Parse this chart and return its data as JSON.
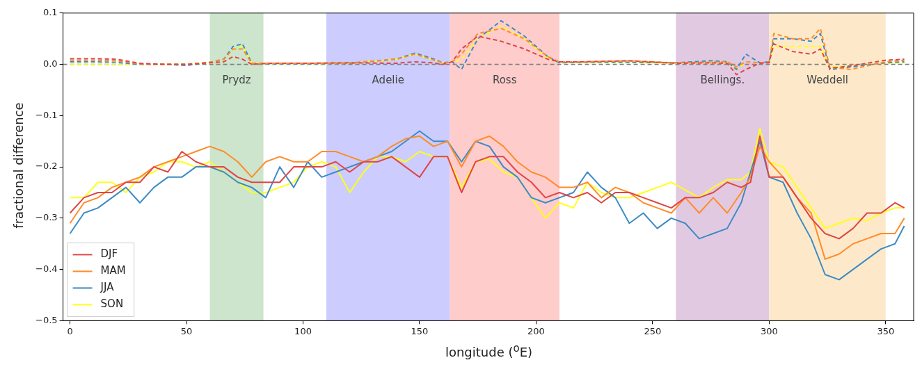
{
  "chart_data": {
    "type": "line",
    "xlabel": "longitude ($^{o}$E)",
    "ylabel": "fractional difference",
    "xlim": [
      -3,
      362
    ],
    "ylim": [
      -0.5,
      0.1
    ],
    "xticks": [
      0,
      50,
      100,
      150,
      200,
      250,
      300,
      350
    ],
    "yticks": [
      {
        "value": -0.5,
        "label": "−0.5"
      },
      {
        "value": -0.4,
        "label": "−0.4"
      },
      {
        "value": -0.3,
        "label": "−0.3"
      },
      {
        "value": -0.2,
        "label": "−0.2"
      },
      {
        "value": -0.1,
        "label": "−0.1"
      },
      {
        "value": 0,
        "label": "0.0"
      },
      {
        "value": 0.1,
        "label": "0.1"
      }
    ],
    "grid": false,
    "legend": "bottom left",
    "marker": "none",
    "line_style": "solid",
    "x": [
      0,
      6,
      12,
      18,
      24,
      30,
      36,
      42,
      48,
      54,
      60,
      66,
      72,
      78,
      84,
      90,
      96,
      102,
      108,
      114,
      120,
      126,
      132,
      138,
      144,
      150,
      156,
      162,
      168,
      174,
      180,
      186,
      192,
      198,
      204,
      210,
      216,
      222,
      228,
      234,
      240,
      246,
      252,
      258,
      264,
      270,
      276,
      282,
      288,
      292,
      296,
      300,
      306,
      312,
      318,
      324,
      330,
      336,
      342,
      348,
      354,
      358
    ],
    "series": [
      {
        "name": "DJF",
        "color": "#e04545",
        "values": [
          -0.29,
          -0.26,
          -0.25,
          -0.25,
          -0.23,
          -0.23,
          -0.2,
          -0.21,
          -0.17,
          -0.19,
          -0.2,
          -0.2,
          -0.22,
          -0.23,
          -0.23,
          -0.23,
          -0.2,
          -0.2,
          -0.2,
          -0.19,
          -0.21,
          -0.19,
          -0.19,
          -0.18,
          -0.2,
          -0.22,
          -0.18,
          -0.18,
          -0.25,
          -0.19,
          -0.18,
          -0.18,
          -0.21,
          -0.23,
          -0.26,
          -0.25,
          -0.26,
          -0.25,
          -0.27,
          -0.25,
          -0.25,
          -0.26,
          -0.27,
          -0.28,
          -0.26,
          -0.26,
          -0.25,
          -0.23,
          -0.24,
          -0.23,
          -0.14,
          -0.22,
          -0.22,
          -0.26,
          -0.3,
          -0.33,
          -0.34,
          -0.32,
          -0.29,
          -0.29,
          -0.27,
          -0.28
        ]
      },
      {
        "name": "MAM",
        "color": "#ff8c2a",
        "values": [
          -0.31,
          -0.27,
          -0.26,
          -0.24,
          -0.23,
          -0.22,
          -0.2,
          -0.19,
          -0.18,
          -0.17,
          -0.16,
          -0.17,
          -0.19,
          -0.22,
          -0.19,
          -0.18,
          -0.19,
          -0.19,
          -0.17,
          -0.17,
          -0.18,
          -0.19,
          -0.18,
          -0.16,
          -0.145,
          -0.14,
          -0.16,
          -0.15,
          -0.2,
          -0.15,
          -0.14,
          -0.16,
          -0.19,
          -0.21,
          -0.22,
          -0.24,
          -0.24,
          -0.23,
          -0.26,
          -0.24,
          -0.25,
          -0.27,
          -0.28,
          -0.29,
          -0.26,
          -0.29,
          -0.26,
          -0.29,
          -0.25,
          -0.22,
          -0.16,
          -0.19,
          -0.22,
          -0.26,
          -0.29,
          -0.38,
          -0.37,
          -0.35,
          -0.34,
          -0.33,
          -0.33,
          -0.3
        ]
      },
      {
        "name": "JJA",
        "color": "#3d8bc4",
        "values": [
          -0.33,
          -0.29,
          -0.28,
          -0.26,
          -0.24,
          -0.27,
          -0.24,
          -0.22,
          -0.22,
          -0.2,
          -0.2,
          -0.21,
          -0.23,
          -0.24,
          -0.26,
          -0.2,
          -0.24,
          -0.19,
          -0.22,
          -0.21,
          -0.2,
          -0.19,
          -0.18,
          -0.17,
          -0.15,
          -0.13,
          -0.15,
          -0.15,
          -0.19,
          -0.15,
          -0.16,
          -0.2,
          -0.22,
          -0.26,
          -0.27,
          -0.26,
          -0.25,
          -0.21,
          -0.24,
          -0.26,
          -0.31,
          -0.29,
          -0.32,
          -0.3,
          -0.31,
          -0.34,
          -0.33,
          -0.32,
          -0.27,
          -0.21,
          -0.15,
          -0.22,
          -0.23,
          -0.29,
          -0.34,
          -0.41,
          -0.42,
          -0.4,
          -0.38,
          -0.36,
          -0.35,
          -0.315
        ]
      },
      {
        "name": "SON",
        "color": "#ffff1a",
        "values": [
          -0.26,
          -0.26,
          -0.23,
          -0.23,
          -0.25,
          -0.22,
          -0.21,
          -0.19,
          -0.19,
          -0.2,
          -0.19,
          -0.21,
          -0.23,
          -0.25,
          -0.25,
          -0.24,
          -0.23,
          -0.2,
          -0.19,
          -0.2,
          -0.25,
          -0.21,
          -0.18,
          -0.18,
          -0.19,
          -0.17,
          -0.18,
          -0.18,
          -0.24,
          -0.19,
          -0.185,
          -0.21,
          -0.22,
          -0.26,
          -0.3,
          -0.27,
          -0.28,
          -0.23,
          -0.25,
          -0.26,
          -0.26,
          -0.25,
          -0.24,
          -0.23,
          -0.245,
          -0.26,
          -0.24,
          -0.225,
          -0.225,
          -0.21,
          -0.125,
          -0.19,
          -0.2,
          -0.24,
          -0.28,
          -0.32,
          -0.31,
          -0.3,
          -0.305,
          -0.29,
          -0.28,
          -0.28
        ]
      },
      {
        "color": "#e04545",
        "line_style": "dashed",
        "x": [
          0,
          10,
          20,
          30,
          40,
          50,
          60,
          66,
          70,
          74,
          78,
          85,
          100,
          120,
          140,
          148,
          155,
          160,
          164,
          168,
          175,
          185,
          195,
          205,
          210,
          220,
          240,
          260,
          275,
          282,
          286,
          290,
          296,
          300,
          302,
          310,
          318,
          322,
          326,
          335,
          350,
          358
        ],
        "values": [
          0.011,
          0.011,
          0.01,
          0.002,
          0,
          0,
          0.003,
          0.005,
          0.015,
          0.01,
          0,
          0.002,
          0.002,
          0.003,
          0.002,
          0.005,
          0.003,
          0,
          0.005,
          0.03,
          0.055,
          0.045,
          0.03,
          0.01,
          0.005,
          0.005,
          0.007,
          0.002,
          0.003,
          0.002,
          -0.02,
          -0.01,
          0.002,
          0.003,
          0.04,
          0.025,
          0.02,
          0.03,
          -0.008,
          -0.003,
          0.008,
          0.01
        ]
      },
      {
        "color": "#ff8c2a",
        "line_style": "dashed",
        "x": [
          0,
          10,
          20,
          30,
          40,
          50,
          60,
          66,
          70,
          74,
          78,
          85,
          100,
          120,
          140,
          148,
          155,
          160,
          164,
          168,
          175,
          185,
          195,
          205,
          210,
          220,
          240,
          260,
          275,
          282,
          286,
          290,
          296,
          300,
          302,
          310,
          318,
          322,
          326,
          335,
          350,
          358
        ],
        "values": [
          0.008,
          0.008,
          0.007,
          0.001,
          0,
          0,
          0.004,
          0.01,
          0.03,
          0.03,
          0.002,
          0.002,
          0.002,
          0.003,
          0.01,
          0.02,
          0.01,
          0.003,
          0.005,
          0.02,
          0.06,
          0.07,
          0.05,
          0.015,
          0.005,
          0.005,
          0.007,
          0.003,
          0.004,
          0.005,
          -0.005,
          0.005,
          0.003,
          0.005,
          0.06,
          0.05,
          0.05,
          0.07,
          -0.005,
          -0.01,
          0.005,
          0.008
        ]
      },
      {
        "color": "#3d8bc4",
        "line_style": "dashed",
        "x": [
          0,
          10,
          20,
          30,
          40,
          50,
          60,
          66,
          70,
          74,
          78,
          85,
          100,
          120,
          140,
          148,
          155,
          160,
          164,
          168,
          175,
          185,
          195,
          205,
          210,
          220,
          240,
          260,
          275,
          282,
          286,
          290,
          296,
          300,
          302,
          310,
          318,
          322,
          326,
          335,
          350,
          358
        ],
        "values": [
          0.005,
          0.005,
          0.004,
          0,
          0,
          -0.002,
          0.004,
          0.01,
          0.035,
          0.04,
          0.002,
          0.001,
          0.001,
          0.002,
          0.01,
          0.022,
          0.012,
          0.003,
          0.005,
          -0.01,
          0.05,
          0.085,
          0.055,
          0.015,
          0.003,
          0.004,
          0.004,
          0.003,
          0.007,
          0.005,
          -0.01,
          0.02,
          0.003,
          0.005,
          0.05,
          0.05,
          0.045,
          0.06,
          -0.01,
          -0.005,
          0.003,
          0.005
        ]
      },
      {
        "color": "#ffff1a",
        "line_style": "dashed",
        "x": [
          0,
          10,
          20,
          30,
          40,
          50,
          60,
          66,
          70,
          74,
          78,
          85,
          100,
          120,
          140,
          148,
          155,
          160,
          164,
          168,
          175,
          185,
          195,
          205,
          210,
          220,
          240,
          260,
          275,
          282,
          286,
          290,
          296,
          300,
          302,
          310,
          318,
          322,
          326,
          335,
          350,
          358
        ],
        "values": [
          0,
          0,
          0,
          0,
          0,
          0,
          0.004,
          0.01,
          0.03,
          0.035,
          0.002,
          0.001,
          0.001,
          0.002,
          0.01,
          0.02,
          0.01,
          0.003,
          0.005,
          0.01,
          0.05,
          0.075,
          0.05,
          0.012,
          0.003,
          0.003,
          0.003,
          0.002,
          0.005,
          0.004,
          -0.01,
          0.005,
          0.003,
          0.005,
          0.035,
          0.035,
          0.035,
          0.035,
          -0.005,
          -0.003,
          0.002,
          0.003
        ]
      }
    ],
    "bands": [
      {
        "axis": "x",
        "from": 60,
        "to": 83,
        "label": "Prydz",
        "color": "#cce5cc"
      },
      {
        "axis": "x",
        "from": 110,
        "to": 163,
        "label": "Adelie",
        "color": "#ccccff"
      },
      {
        "axis": "x",
        "from": 163,
        "to": 210,
        "label": "Ross",
        "color": "#ffcccc"
      },
      {
        "axis": "x",
        "from": 260,
        "to": 300,
        "label": "Bellings.",
        "color": "#e2c9e2"
      },
      {
        "axis": "x",
        "from": 300,
        "to": 350,
        "label": "Weddell",
        "color": "#fde9c9"
      }
    ],
    "ref_lines": [
      {
        "axis": "y",
        "value": 0,
        "color": "#808080",
        "line_style": "dashed"
      }
    ]
  }
}
